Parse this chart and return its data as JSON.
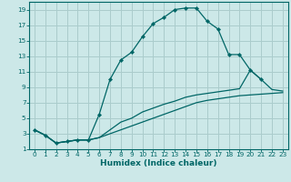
{
  "xlabel": "Humidex (Indice chaleur)",
  "bg_color": "#cce8e8",
  "grid_color": "#aacccc",
  "line_color": "#006666",
  "xlim": [
    -0.5,
    23.5
  ],
  "ylim": [
    1,
    20
  ],
  "xticks": [
    0,
    1,
    2,
    3,
    4,
    5,
    6,
    7,
    8,
    9,
    10,
    11,
    12,
    13,
    14,
    15,
    16,
    17,
    18,
    19,
    20,
    21,
    22,
    23
  ],
  "yticks": [
    1,
    3,
    5,
    7,
    9,
    11,
    13,
    15,
    17,
    19
  ],
  "line1_x": [
    0,
    1,
    2,
    3,
    4,
    5,
    6,
    7,
    8,
    9,
    10,
    11,
    12,
    13,
    14,
    15,
    16,
    17,
    18,
    19,
    20,
    21
  ],
  "line1_y": [
    3.5,
    2.8,
    1.8,
    2.0,
    2.2,
    2.2,
    5.5,
    10.0,
    12.5,
    13.5,
    15.5,
    17.2,
    18.0,
    19.0,
    19.2,
    19.2,
    17.5,
    16.5,
    13.2,
    13.2,
    11.2,
    10.0
  ],
  "line2_x": [
    0,
    1,
    2,
    3,
    4,
    5,
    6,
    7,
    8,
    9,
    10,
    11,
    12,
    13,
    14,
    15,
    16,
    17,
    18,
    19,
    20,
    21,
    22,
    23
  ],
  "line2_y": [
    3.5,
    2.8,
    1.8,
    2.0,
    2.2,
    2.2,
    2.5,
    3.0,
    3.5,
    4.0,
    4.5,
    5.0,
    5.5,
    6.0,
    6.5,
    7.0,
    7.3,
    7.5,
    7.7,
    7.9,
    8.0,
    8.1,
    8.2,
    8.3
  ],
  "line3_x": [
    0,
    1,
    2,
    3,
    4,
    5,
    6,
    7,
    8,
    9,
    10,
    11,
    12,
    13,
    14,
    15,
    16,
    17,
    18,
    19,
    20,
    21,
    22,
    23
  ],
  "line3_y": [
    3.5,
    2.8,
    1.8,
    2.0,
    2.2,
    2.2,
    2.5,
    3.5,
    4.5,
    5.0,
    5.8,
    6.3,
    6.8,
    7.2,
    7.7,
    8.0,
    8.2,
    8.4,
    8.6,
    8.8,
    11.2,
    10.0,
    8.7,
    8.5
  ],
  "tick_fontsize": 5.2,
  "xlabel_fontsize": 6.5
}
